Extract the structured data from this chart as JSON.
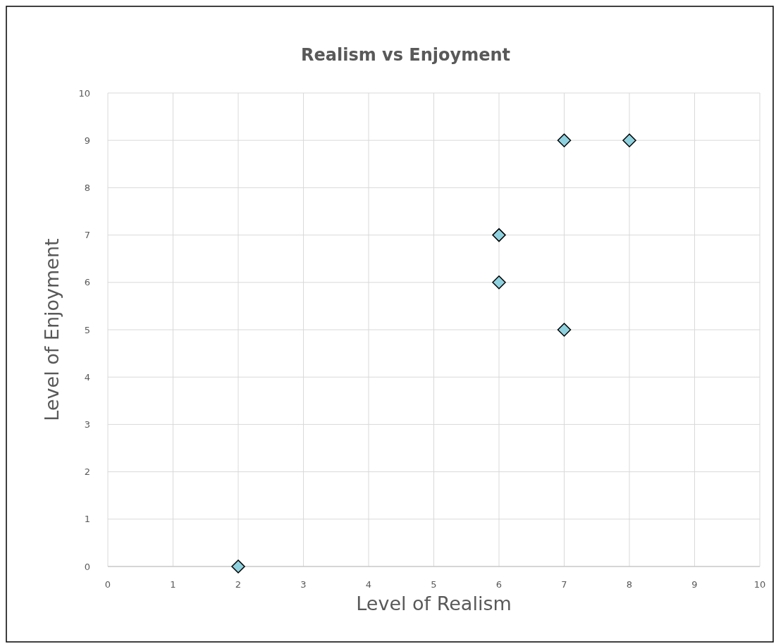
{
  "chart_data": {
    "type": "scatter",
    "title": "Realism vs Enjoyment",
    "xlabel": "Level of Realism",
    "ylabel": "Level of Enjoyment",
    "x": [
      2,
      6,
      6,
      7,
      7,
      8
    ],
    "series": [
      {
        "color": "#8fd1de",
        "values": [
          0,
          6,
          7,
          5,
          9,
          9
        ]
      }
    ],
    "xlim": [
      0,
      10
    ],
    "xticks": [
      0,
      1,
      2,
      3,
      4,
      5,
      6,
      7,
      8,
      9,
      10
    ],
    "ylim": [
      0,
      10
    ],
    "yticks": [
      0,
      1,
      2,
      3,
      4,
      5,
      6,
      7,
      8,
      9,
      10
    ],
    "grid": true,
    "marker": "diamond"
  }
}
